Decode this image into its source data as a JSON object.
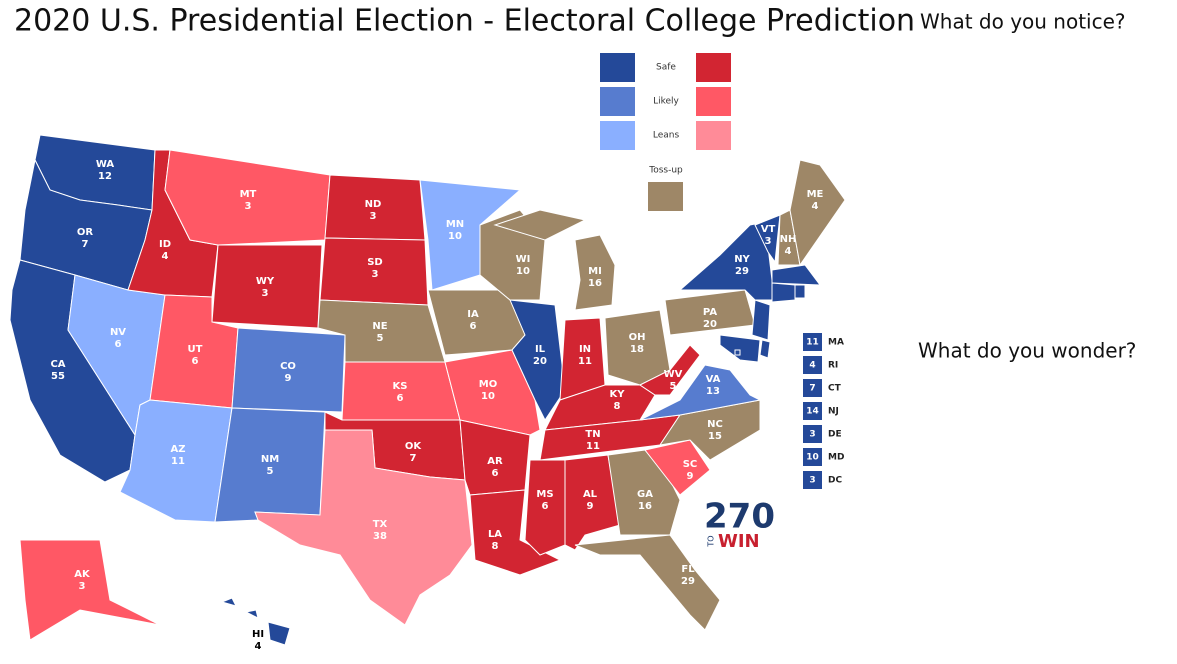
{
  "title": "2020 U.S. Presidential Election - Electoral College Prediction",
  "prompts": [
    "What do you notice?",
    "What do you wonder?"
  ],
  "legend": {
    "labels": [
      "Safe",
      "Likely",
      "Leans"
    ],
    "dem_colors": [
      "#244999",
      "#577ccf",
      "#8aafff"
    ],
    "rep_colors": [
      "#d22532",
      "#ff5865",
      "#ff8b98"
    ],
    "toss_up": "Toss-up",
    "toss_up_color": "#9e8767"
  },
  "states": [
    {
      "abbr": "WA",
      "votes": 12,
      "color": "#244999"
    },
    {
      "abbr": "OR",
      "votes": 7,
      "color": "#244999"
    },
    {
      "abbr": "CA",
      "votes": 55,
      "color": "#244999"
    },
    {
      "abbr": "NV",
      "votes": 6,
      "color": "#8aafff"
    },
    {
      "abbr": "ID",
      "votes": 4,
      "color": "#d22532"
    },
    {
      "abbr": "MT",
      "votes": 3,
      "color": "#ff5865"
    },
    {
      "abbr": "WY",
      "votes": 3,
      "color": "#d22532"
    },
    {
      "abbr": "UT",
      "votes": 6,
      "color": "#ff5865"
    },
    {
      "abbr": "CO",
      "votes": 9,
      "color": "#577ccf"
    },
    {
      "abbr": "AZ",
      "votes": 11,
      "color": "#8aafff"
    },
    {
      "abbr": "NM",
      "votes": 5,
      "color": "#577ccf"
    },
    {
      "abbr": "ND",
      "votes": 3,
      "color": "#d22532"
    },
    {
      "abbr": "SD",
      "votes": 3,
      "color": "#d22532"
    },
    {
      "abbr": "NE",
      "votes": 5,
      "color": "#9e8767"
    },
    {
      "abbr": "KS",
      "votes": 6,
      "color": "#ff5865"
    },
    {
      "abbr": "OK",
      "votes": 7,
      "color": "#d22532"
    },
    {
      "abbr": "TX",
      "votes": 38,
      "color": "#ff8b98"
    },
    {
      "abbr": "MN",
      "votes": 10,
      "color": "#8aafff"
    },
    {
      "abbr": "IA",
      "votes": 6,
      "color": "#9e8767"
    },
    {
      "abbr": "MO",
      "votes": 10,
      "color": "#ff5865"
    },
    {
      "abbr": "AR",
      "votes": 6,
      "color": "#d22532"
    },
    {
      "abbr": "LA",
      "votes": 8,
      "color": "#d22532"
    },
    {
      "abbr": "WI",
      "votes": 10,
      "color": "#9e8767"
    },
    {
      "abbr": "IL",
      "votes": 20,
      "color": "#244999"
    },
    {
      "abbr": "MI",
      "votes": 16,
      "color": "#9e8767"
    },
    {
      "abbr": "IN",
      "votes": 11,
      "color": "#d22532"
    },
    {
      "abbr": "OH",
      "votes": 18,
      "color": "#9e8767"
    },
    {
      "abbr": "KY",
      "votes": 8,
      "color": "#d22532"
    },
    {
      "abbr": "TN",
      "votes": 11,
      "color": "#d22532"
    },
    {
      "abbr": "MS",
      "votes": 6,
      "color": "#d22532"
    },
    {
      "abbr": "AL",
      "votes": 9,
      "color": "#d22532"
    },
    {
      "abbr": "GA",
      "votes": 16,
      "color": "#9e8767"
    },
    {
      "abbr": "FL",
      "votes": 29,
      "color": "#9e8767"
    },
    {
      "abbr": "SC",
      "votes": 9,
      "color": "#ff5865"
    },
    {
      "abbr": "NC",
      "votes": 15,
      "color": "#9e8767"
    },
    {
      "abbr": "VA",
      "votes": 13,
      "color": "#577ccf"
    },
    {
      "abbr": "WV",
      "votes": 5,
      "color": "#d22532"
    },
    {
      "abbr": "PA",
      "votes": 20,
      "color": "#9e8767"
    },
    {
      "abbr": "NY",
      "votes": 29,
      "color": "#244999"
    },
    {
      "abbr": "VT",
      "votes": 3,
      "color": "#244999"
    },
    {
      "abbr": "NH",
      "votes": 4,
      "color": "#9e8767"
    },
    {
      "abbr": "ME",
      "votes": 4,
      "color": "#9e8767"
    },
    {
      "abbr": "AK",
      "votes": 3,
      "color": "#ff5865"
    },
    {
      "abbr": "HI",
      "votes": 4,
      "color": "#244999"
    }
  ],
  "small_states": [
    {
      "votes": 11,
      "abbr": "MA",
      "color": "#244999"
    },
    {
      "votes": 4,
      "abbr": "RI",
      "color": "#244999"
    },
    {
      "votes": 7,
      "abbr": "CT",
      "color": "#244999"
    },
    {
      "votes": 14,
      "abbr": "NJ",
      "color": "#244999"
    },
    {
      "votes": 3,
      "abbr": "DE",
      "color": "#244999"
    },
    {
      "votes": 10,
      "abbr": "MD",
      "color": "#244999"
    },
    {
      "votes": 3,
      "abbr": "DC",
      "color": "#244999"
    }
  ],
  "logo": {
    "number": "270",
    "to": "TO",
    "win": "WIN"
  }
}
